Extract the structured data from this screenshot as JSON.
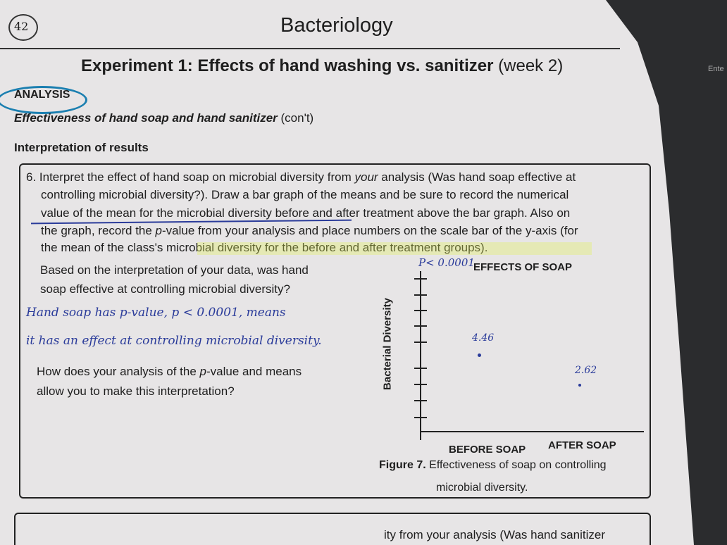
{
  "page_number": "42",
  "header": {
    "title": "Bacteriology"
  },
  "experiment_title": {
    "main": "Experiment 1: Effects of hand washing vs. sanitizer",
    "note": "(week 2)"
  },
  "section": "ANALYSIS",
  "subtitle": {
    "main": "Effectiveness of hand soap and hand sanitizer",
    "note": "(con't)"
  },
  "heading": "Interpretation of results",
  "question": {
    "lines": [
      [
        "6. Interpret the effect of hand soap on microbial diversity from ",
        "your",
        " analysis (Was hand soap effective at"
      ],
      [
        "controlling microbial diversity?). Draw a bar graph of the means and be sure to record the numerical"
      ],
      [
        "value of the mean for the microbial diversity before and after treatment above the bar graph. Also on"
      ],
      [
        "the graph, record the ",
        "p",
        "-value from your analysis and place numbers on the scale bar of the y-axis (for"
      ],
      [
        "the mean of the class's microbial diversity for the before and after treatment groups)."
      ]
    ]
  },
  "prompt_1": [
    "Based on the interpretation of your data, was hand",
    "soap effective at controlling microbial diversity?"
  ],
  "answer_1": [
    "Hand soap has p-value, p < 0.0001, means",
    "it has an effect at controlling microbial diversity."
  ],
  "prompt_2": [
    "How does your analysis of the ",
    "p",
    "-value and means",
    "allow you to make this interpretation?"
  ],
  "figure": {
    "title": "EFFECTS OF SOAP",
    "y_label": "Bacterial Diversity",
    "p_value": "P< 0.0001",
    "points": [
      {
        "category": "BEFORE SOAP",
        "label": "4.46"
      },
      {
        "category": "AFTER SOAP",
        "label": "2.62"
      }
    ],
    "caption": {
      "number": "Figure 7.",
      "text": [
        "Effectiveness of soap on controlling",
        "microbial diversity."
      ]
    }
  },
  "next_question": "ity from your analysis (Was hand sanitizer",
  "keyboard_key": "Ente"
}
